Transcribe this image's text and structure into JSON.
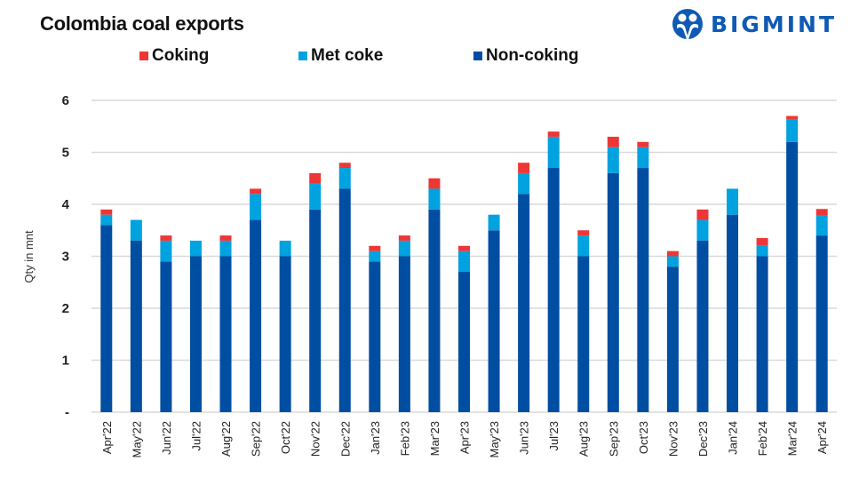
{
  "brand": {
    "name": "BIGMINT",
    "icon": "bigmint-people-logo",
    "color": "#0f5ab4"
  },
  "chart_data": {
    "type": "bar",
    "stacked": true,
    "title": "Colombia coal exports",
    "xlabel": "",
    "ylabel": "Qty in mnt",
    "ylim": [
      0,
      6
    ],
    "yticks": [
      0,
      1,
      2,
      3,
      4,
      5,
      6
    ],
    "ytick_labels": [
      "-",
      "1",
      "2",
      "3",
      "4",
      "5",
      "6"
    ],
    "grid": true,
    "legend_position": "top",
    "categories": [
      "Apr'22",
      "May'22",
      "Jun'22",
      "Jul'22",
      "Aug'22",
      "Sep'22",
      "Oct'22",
      "Nov'22",
      "Dec'22",
      "Jan'23",
      "Feb'23",
      "Mar'23",
      "Apr'23",
      "May'23",
      "Jun'23",
      "Jul'23",
      "Aug'23",
      "Sep'23",
      "Oct'23",
      "Nov'23",
      "Dec'23",
      "Jan'24",
      "Feb'24",
      "Mar'24",
      "Apr'24"
    ],
    "series": [
      {
        "name": "Non-coking",
        "color": "#004ea2",
        "values": [
          3.6,
          3.3,
          2.9,
          3.0,
          3.0,
          3.7,
          3.0,
          3.9,
          4.3,
          2.9,
          3.0,
          3.9,
          2.7,
          3.5,
          4.2,
          4.7,
          3.0,
          4.6,
          4.7,
          2.8,
          3.3,
          3.8,
          3.0,
          5.2,
          3.4
        ]
      },
      {
        "name": "Met coke",
        "color": "#00a2e0",
        "values": [
          0.2,
          0.4,
          0.4,
          0.3,
          0.3,
          0.5,
          0.3,
          0.5,
          0.4,
          0.2,
          0.3,
          0.4,
          0.4,
          0.3,
          0.4,
          0.6,
          0.4,
          0.5,
          0.4,
          0.2,
          0.4,
          0.5,
          0.2,
          0.43,
          0.38
        ]
      },
      {
        "name": "Coking",
        "color": "#ee3636",
        "values": [
          0.1,
          0.0,
          0.1,
          0.0,
          0.1,
          0.1,
          0.0,
          0.2,
          0.1,
          0.1,
          0.1,
          0.2,
          0.1,
          0.0,
          0.2,
          0.1,
          0.1,
          0.2,
          0.1,
          0.1,
          0.2,
          0.0,
          0.15,
          0.07,
          0.13
        ]
      }
    ],
    "legend_order": [
      "Coking",
      "Met coke",
      "Non-coking"
    ]
  }
}
